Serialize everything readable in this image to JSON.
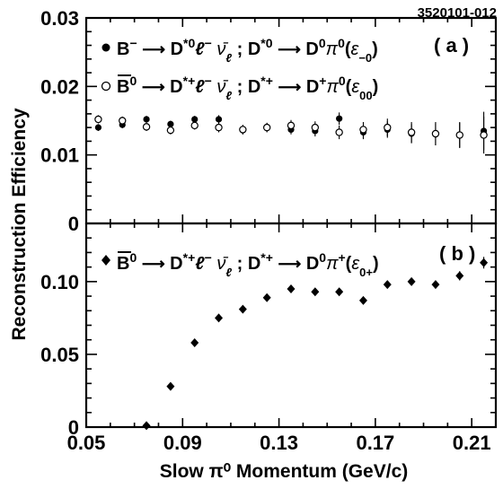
{
  "figure_id": "3520101-012",
  "x_axis_title": "Slow π⁰ Momentum (GeV/c)",
  "y_axis_title": "Reconstruction Efficiency",
  "chart_data": [
    {
      "type": "scatter",
      "panel_label": "( a )",
      "xlabel": "Slow π⁰ Momentum (GeV/c)",
      "ylabel": "Reconstruction Efficiency",
      "xlim": [
        0.05,
        0.22
      ],
      "ylim": [
        0,
        0.03
      ],
      "x_ticks": [
        0.05,
        0.09,
        0.13,
        0.17,
        0.21
      ],
      "x_tick_labels": [
        "0.05",
        "0.09",
        "0.13",
        "0.17",
        "0.21"
      ],
      "y_ticks": [
        0,
        0.01,
        0.02,
        0.03
      ],
      "y_tick_labels": [
        "0",
        "0.01",
        "0.02",
        "0.03"
      ],
      "legend_position": "top-left",
      "series": [
        {
          "name": "B⁻ → D*⁰ℓ⁻ ν̄_ℓ ; D*⁰ → D⁰π⁰(ε₋₀)",
          "marker": "filled-circle",
          "x": [
            0.055,
            0.065,
            0.075,
            0.085,
            0.095,
            0.105,
            0.115,
            0.125,
            0.135,
            0.145,
            0.155,
            0.165,
            0.175,
            0.185,
            0.195,
            0.205,
            0.215
          ],
          "y": [
            0.014,
            0.0144,
            0.0152,
            0.0145,
            0.0152,
            0.0152,
            0.0136,
            0.014,
            0.0137,
            0.0135,
            0.0153,
            0.0133,
            0.0137,
            0.0131,
            0.013,
            0.0129,
            0.0135
          ],
          "err": [
            0.0005,
            0.0005,
            0.0005,
            0.0005,
            0.0005,
            0.0006,
            0.0006,
            0.0006,
            0.0007,
            0.0008,
            0.0009,
            0.001,
            0.0012,
            0.0014,
            0.0016,
            0.0018,
            0.0028
          ]
        },
        {
          "name": "B̄⁰ → D*⁺ℓ⁻ ν̄_ℓ ; D*⁺ → D⁺π⁰(ε₀₀)",
          "marker": "open-circle",
          "x": [
            0.055,
            0.065,
            0.075,
            0.085,
            0.095,
            0.105,
            0.115,
            0.125,
            0.135,
            0.145,
            0.155,
            0.165,
            0.175,
            0.185,
            0.195,
            0.205,
            0.215
          ],
          "y": [
            0.0152,
            0.015,
            0.0141,
            0.0136,
            0.0143,
            0.014,
            0.0137,
            0.014,
            0.0143,
            0.014,
            0.0133,
            0.0137,
            0.014,
            0.0133,
            0.0131,
            0.0129,
            0.0129
          ],
          "err": [
            0.0006,
            0.0006,
            0.0006,
            0.0006,
            0.0006,
            0.0007,
            0.0007,
            0.0007,
            0.0008,
            0.0009,
            0.001,
            0.0011,
            0.0013,
            0.0015,
            0.0017,
            0.0019,
            0.0027
          ]
        }
      ]
    },
    {
      "type": "scatter",
      "panel_label": "( b )",
      "xlabel": "Slow π⁰ Momentum (GeV/c)",
      "ylabel": "Reconstruction Efficiency",
      "xlim": [
        0.05,
        0.22
      ],
      "ylim": [
        0,
        0.14
      ],
      "x_ticks": [
        0.05,
        0.09,
        0.13,
        0.17,
        0.21
      ],
      "x_tick_labels": [
        "0.05",
        "0.09",
        "0.13",
        "0.17",
        "0.21"
      ],
      "y_ticks": [
        0,
        0.05,
        0.1
      ],
      "y_tick_labels": [
        "0",
        "0.05",
        "0.10"
      ],
      "legend_position": "top-left",
      "series": [
        {
          "name": "B̄⁰ → D*⁺ℓ⁻ ν̄_ℓ ; D*⁺ → D⁰π⁺(ε₀₊)",
          "marker": "filled-diamond",
          "x": [
            0.075,
            0.085,
            0.095,
            0.105,
            0.115,
            0.125,
            0.135,
            0.145,
            0.155,
            0.165,
            0.175,
            0.185,
            0.195,
            0.205,
            0.215
          ],
          "y": [
            0.001,
            0.028,
            0.058,
            0.075,
            0.081,
            0.089,
            0.095,
            0.093,
            0.093,
            0.087,
            0.098,
            0.1,
            0.098,
            0.104,
            0.113
          ],
          "err": [
            0.0006,
            0.0008,
            0.001,
            0.0012,
            0.0013,
            0.0014,
            0.0015,
            0.0015,
            0.0016,
            0.0018,
            0.002,
            0.0023,
            0.0027,
            0.0032,
            0.004
          ]
        }
      ]
    }
  ]
}
